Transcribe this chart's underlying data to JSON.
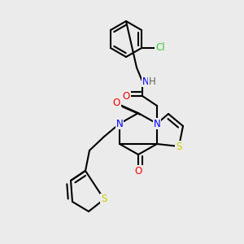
{
  "bg_color": "#ebebeb",
  "atom_colors": {
    "C": "#000000",
    "N": "#0000ff",
    "O": "#ff0000",
    "S": "#cccc00",
    "Cl": "#33cc33",
    "H": "#606060"
  },
  "bond_color": "#000000",
  "bond_width": 1.5,
  "font_size": 8.5
}
